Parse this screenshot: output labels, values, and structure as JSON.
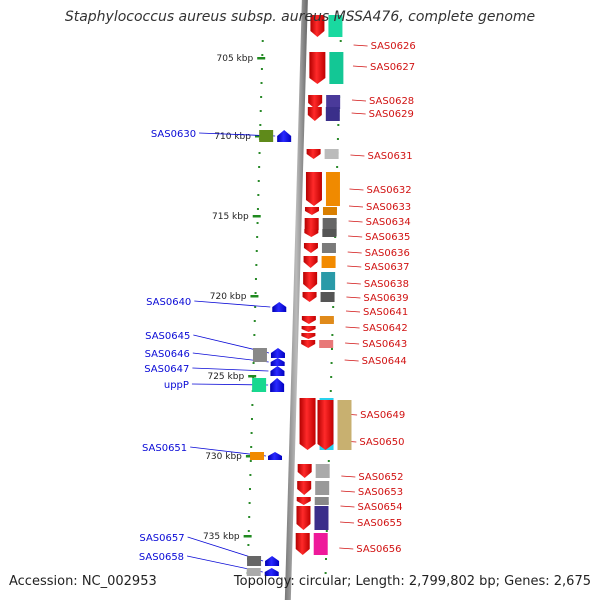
{
  "title": "Staphylococcus aureus subsp. aureus MSSA476, complete genome",
  "footer": {
    "accession": "Accession: NC_002953",
    "summary": "Topology: circular; Length: 2,799,802 bp; Genes: 2,675"
  },
  "ticks": [
    "705 kbp",
    "710 kbp",
    "715 kbp",
    "720 kbp",
    "725 kbp",
    "730 kbp",
    "735 kbp"
  ],
  "colors": {
    "forward_label": "#0a0ad6",
    "reverse_label": "#d11313",
    "forward_arrow": "#1010ee",
    "reverse_arrow": "#ee1111",
    "backbone": "#888888",
    "tick": "#1f8a1f"
  },
  "reverse_genes": [
    "SAS0626",
    "SAS0627",
    "SAS0628",
    "SAS0629",
    "SAS0631",
    "SAS0632",
    "SAS0633",
    "SAS0634",
    "SAS0635",
    "SAS0636",
    "SAS0637",
    "SAS0638",
    "SAS0639",
    "SAS0641",
    "SAS0642",
    "SAS0643",
    "SAS0644",
    "SAS0649",
    "SAS0650",
    "SAS0652",
    "SAS0653",
    "SAS0654",
    "SAS0655",
    "SAS0656"
  ],
  "forward_genes": [
    "SAS0630",
    "SAS0640",
    "SAS0645",
    "SAS0646",
    "SAS0647",
    "uppP",
    "SAS0651",
    "SAS0657",
    "SAS0658"
  ]
}
